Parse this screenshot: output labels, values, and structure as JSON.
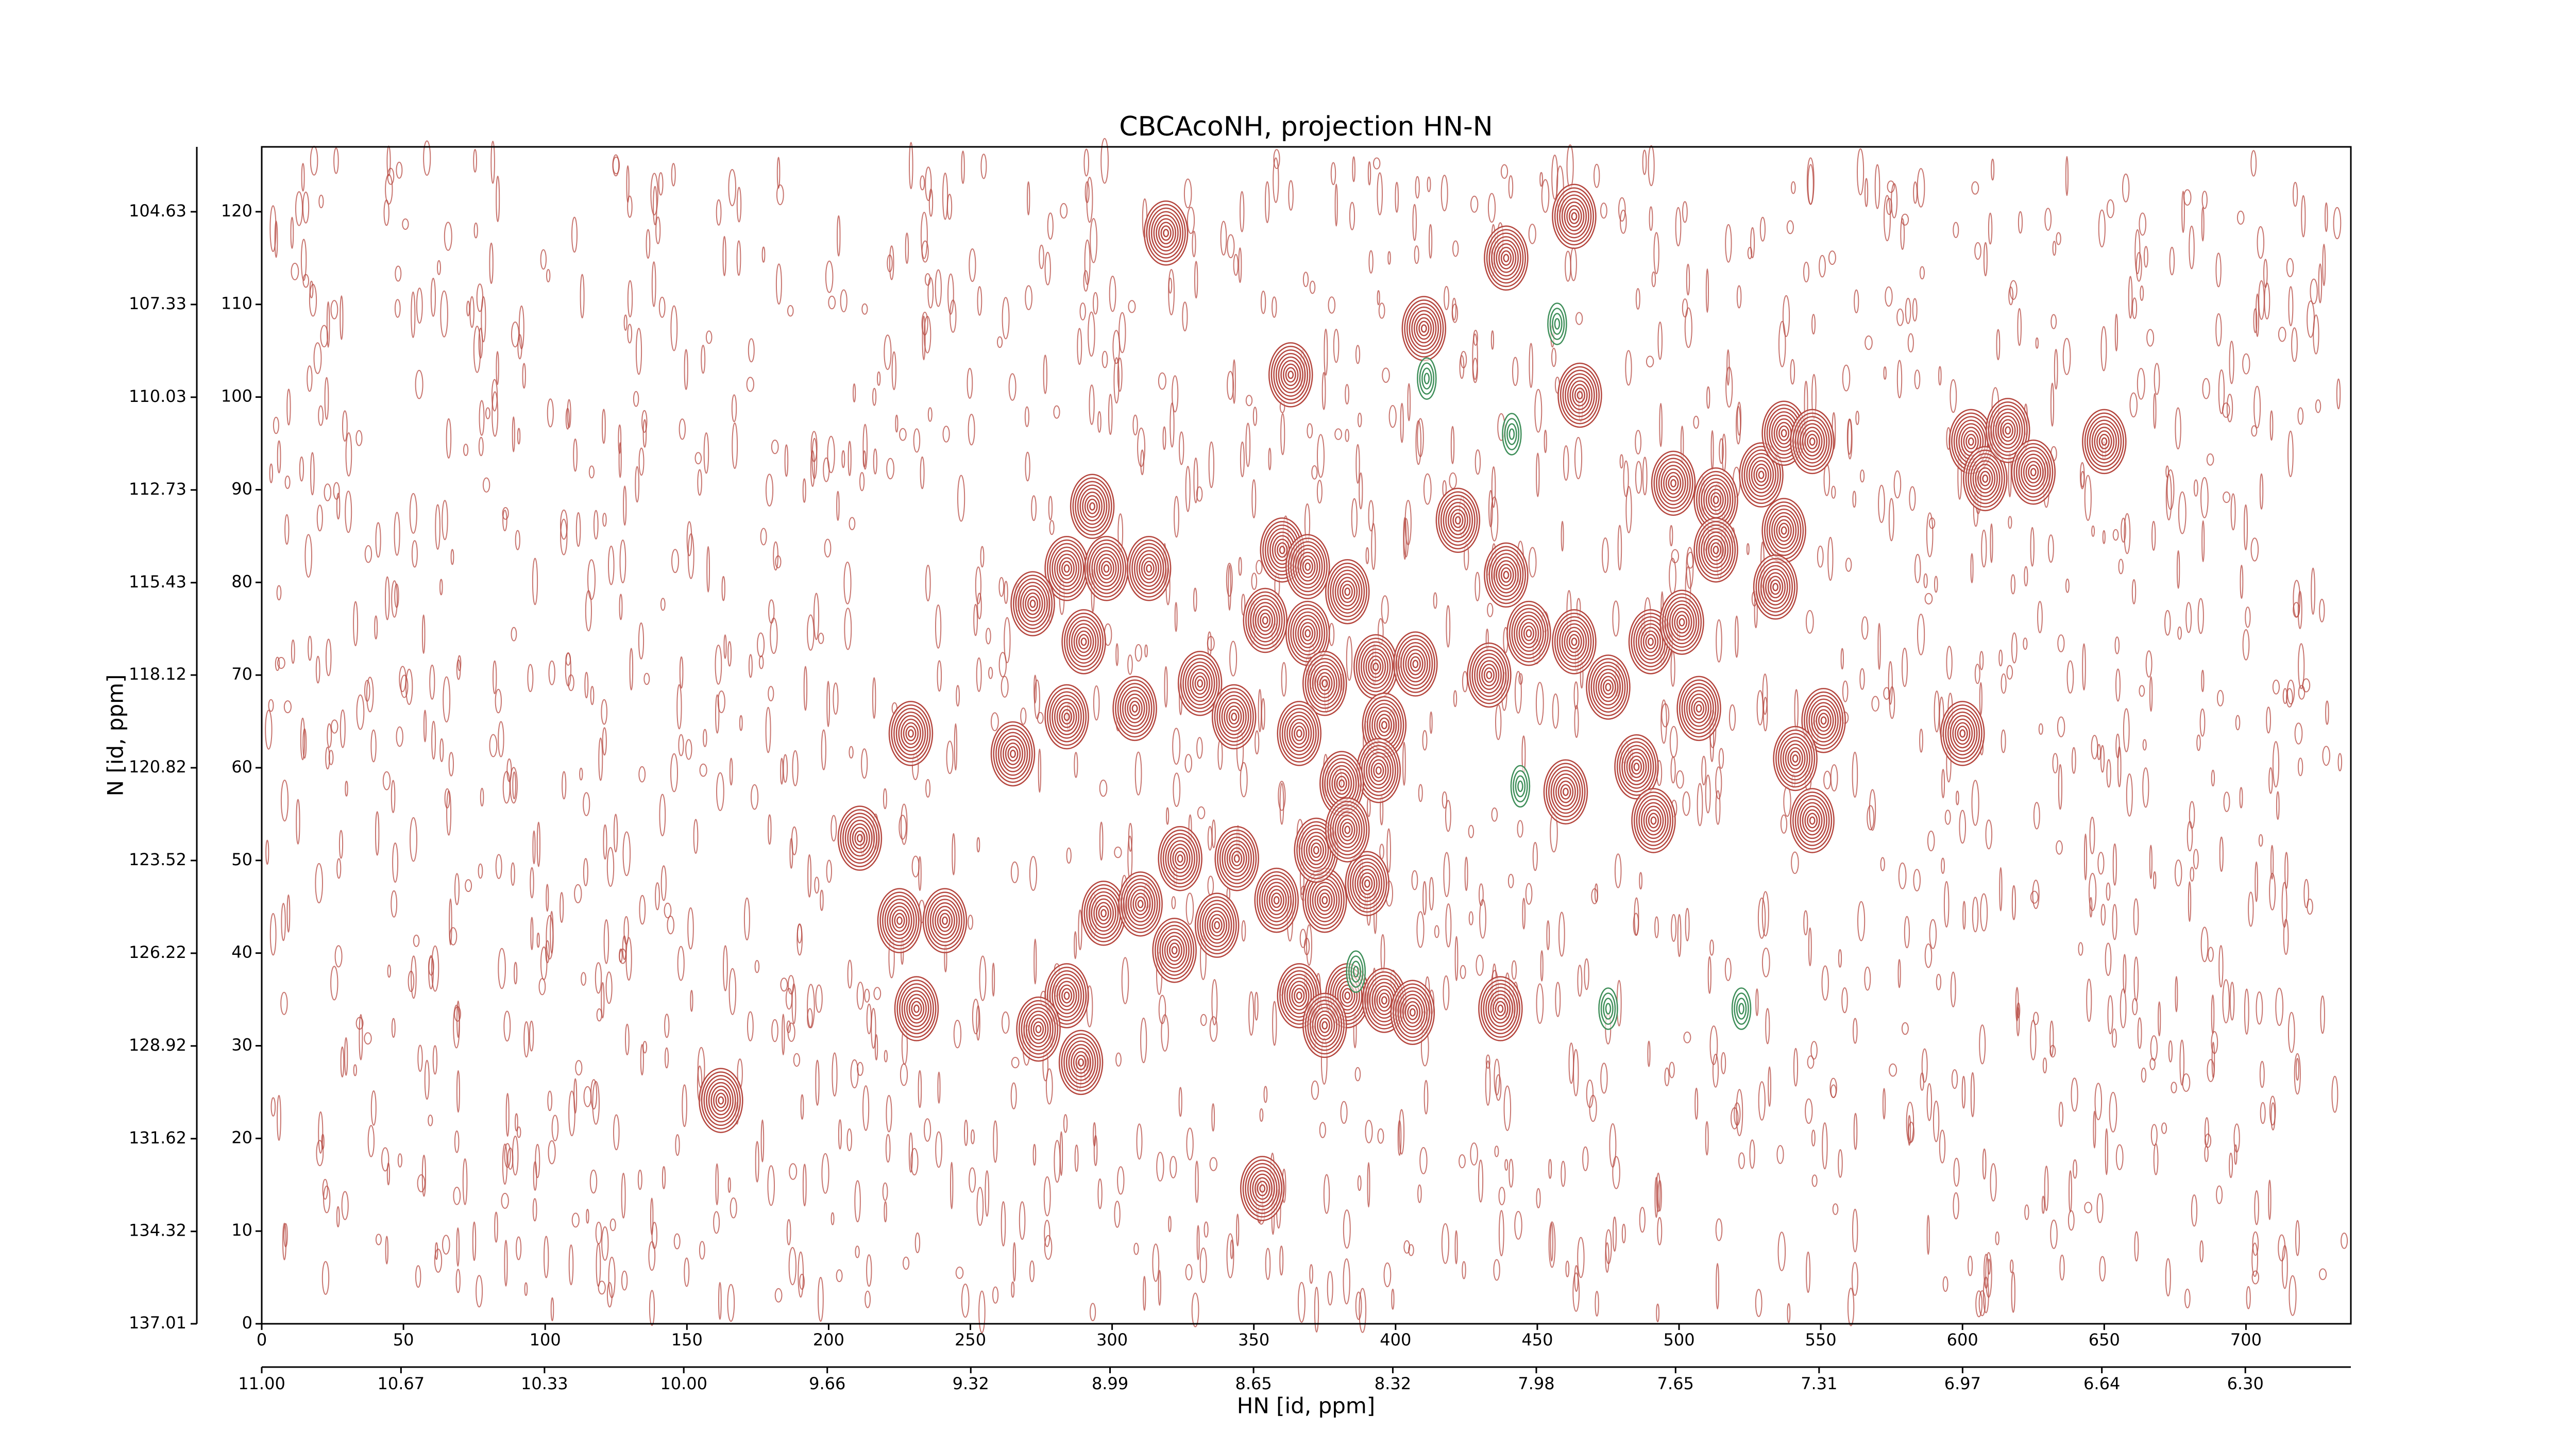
{
  "chart_data": {
    "type": "contour",
    "title": "CBCAcoNH, projection HN-N",
    "xlabel": "HN [id, ppm]",
    "ylabel": "N [id, ppm]",
    "xlim": [
      0,
      737
    ],
    "xticks": [
      0,
      50,
      100,
      150,
      200,
      250,
      300,
      350,
      400,
      450,
      500,
      550,
      600,
      650,
      700
    ],
    "x2lim": [
      11.0,
      6.05
    ],
    "x2ticks": [
      {
        "value": 11,
        "label": "11.00"
      },
      10.67,
      10.33,
      {
        "value": 10,
        "label": "10.00"
      },
      9.66,
      9.32,
      8.99,
      8.65,
      8.32,
      7.98,
      7.65,
      7.31,
      6.97,
      6.64,
      {
        "value": 6.3,
        "label": "6.30"
      }
    ],
    "ylim": [
      0,
      127
    ],
    "yticks": [
      0,
      10,
      20,
      30,
      40,
      50,
      60,
      70,
      80,
      90,
      100,
      110,
      120
    ],
    "y2lim": [
      137.01,
      102.74
    ],
    "y2ticks": [
      137.01,
      134.32,
      131.62,
      128.92,
      126.22,
      123.52,
      120.82,
      118.12,
      115.43,
      112.73,
      110.03,
      107.33,
      104.63
    ],
    "series": [
      {
        "color": "#b5473f",
        "x": [
          319,
          463,
          410,
          363,
          465,
          293,
          422,
          284,
          298,
          313,
          272,
          290,
          360,
          369,
          383,
          354,
          369,
          393,
          407,
          375,
          331,
          284,
          308,
          343,
          366,
          396,
          394,
          381,
          433,
          447,
          463,
          475,
          490,
          501,
          507,
          460,
          485,
          491,
          513,
          513,
          537,
          534,
          551,
          541,
          547,
          498,
          529,
          537,
          547,
          603,
          608,
          616,
          625,
          650,
          600,
          229,
          265,
          211,
          225,
          241,
          231,
          162,
          284,
          274,
          289,
          324,
          297,
          310,
          322,
          344,
          337,
          358,
          375,
          372,
          390,
          366,
          383,
          375,
          396,
          406,
          437,
          353,
          383,
          439,
          439
        ],
        "values": [
          117.7,
          119.5,
          107.4,
          102.4,
          100.2,
          88.2,
          86.7,
          81.5,
          81.5,
          81.5,
          77.7,
          73.6,
          83.5,
          81.7,
          79,
          75.9,
          74.5,
          70.9,
          71.2,
          69.1,
          69.1,
          65.5,
          66.4,
          65.5,
          63.7,
          64.6,
          59.7,
          58.3,
          70,
          74.5,
          73.6,
          68.7,
          73.6,
          75.7,
          66.4,
          57.4,
          60.1,
          54.3,
          88.9,
          83.5,
          85.6,
          79.5,
          65.1,
          61,
          54.3,
          90.7,
          91.6,
          96.1,
          95.2,
          95.2,
          91.2,
          96.4,
          91.9,
          95.2,
          63.7,
          63.7,
          61.5,
          52.4,
          43.5,
          43.5,
          34,
          24.1,
          35.4,
          31.8,
          28.2,
          50.2,
          44.3,
          45.3,
          40.3,
          50.2,
          43,
          45.7,
          45.7,
          51.1,
          47.5,
          35.4,
          35.4,
          32.2,
          34.9,
          33.6,
          34,
          14.6,
          53.3,
          80.8,
          115
        ]
      },
      {
        "color": "#3f8f5a",
        "x": [
          457,
          522,
          475,
          411,
          386,
          441,
          444
        ],
        "values": [
          107.9,
          34,
          34,
          102,
          38,
          96,
          58
        ]
      }
    ]
  }
}
